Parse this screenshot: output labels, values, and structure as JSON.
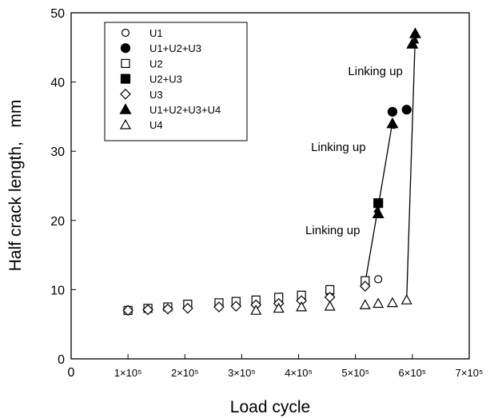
{
  "chart_data": {
    "type": "scatter",
    "xlabel": "Load cycle",
    "ylabel": "Half crack length,   mm",
    "xlim": [
      0,
      700000
    ],
    "ylim": [
      0,
      50
    ],
    "x_ticks": [
      {
        "value": 0,
        "label": "0"
      },
      {
        "value": 100000,
        "label": "1×10⁵"
      },
      {
        "value": 200000,
        "label": "2×10⁵"
      },
      {
        "value": 300000,
        "label": "3×10⁵"
      },
      {
        "value": 400000,
        "label": "4×10⁵"
      },
      {
        "value": 500000,
        "label": "5×10⁵"
      },
      {
        "value": 600000,
        "label": "6×10⁵"
      },
      {
        "value": 700000,
        "label": "7×10⁵"
      }
    ],
    "y_ticks": [
      {
        "value": 0,
        "label": "0"
      },
      {
        "value": 10,
        "label": "10"
      },
      {
        "value": 20,
        "label": "20"
      },
      {
        "value": 30,
        "label": "30"
      },
      {
        "value": 40,
        "label": "40"
      },
      {
        "value": 50,
        "label": "50"
      }
    ],
    "legend_position": "top-left",
    "series": [
      {
        "name": "U1",
        "marker": "circle-open",
        "points": [
          [
            100000,
            7.1
          ],
          [
            135000,
            7.2
          ],
          [
            170000,
            7.3
          ],
          [
            205000,
            7.6
          ],
          [
            260000,
            7.8
          ],
          [
            290000,
            7.9
          ],
          [
            325000,
            8.0
          ],
          [
            365000,
            8.4
          ],
          [
            405000,
            8.6
          ],
          [
            455000,
            9.3
          ],
          [
            517000,
            10.8
          ],
          [
            540000,
            11.5
          ]
        ]
      },
      {
        "name": "U1+U2+U3",
        "marker": "circle-filled",
        "points": [
          [
            565000,
            35.7
          ],
          [
            590000,
            36.0
          ]
        ]
      },
      {
        "name": "U2",
        "marker": "square-open",
        "points": [
          [
            100000,
            7.0
          ],
          [
            135000,
            7.3
          ],
          [
            170000,
            7.5
          ],
          [
            205000,
            7.9
          ],
          [
            260000,
            8.1
          ],
          [
            290000,
            8.3
          ],
          [
            325000,
            8.5
          ],
          [
            365000,
            8.9
          ],
          [
            405000,
            9.2
          ],
          [
            455000,
            10.0
          ],
          [
            517000,
            11.3
          ]
        ]
      },
      {
        "name": "U2+U3",
        "marker": "square-filled",
        "points": [
          [
            540000,
            22.5
          ]
        ]
      },
      {
        "name": "U3",
        "marker": "diamond-open",
        "points": [
          [
            100000,
            7.0
          ],
          [
            135000,
            7.1
          ],
          [
            170000,
            7.2
          ],
          [
            205000,
            7.3
          ],
          [
            260000,
            7.5
          ],
          [
            290000,
            7.6
          ],
          [
            325000,
            7.8
          ],
          [
            365000,
            8.0
          ],
          [
            405000,
            8.4
          ],
          [
            455000,
            8.9
          ],
          [
            517000,
            10.5
          ]
        ]
      },
      {
        "name": "U1+U2+U3+U4",
        "marker": "triangle-filled",
        "points": [
          [
            540000,
            21.0
          ],
          [
            565000,
            34.0
          ],
          [
            600000,
            45.5
          ],
          [
            605000,
            47.0
          ]
        ]
      },
      {
        "name": "U4",
        "marker": "triangle-open",
        "points": [
          [
            325000,
            7.0
          ],
          [
            365000,
            7.3
          ],
          [
            405000,
            7.5
          ],
          [
            455000,
            7.6
          ],
          [
            517000,
            7.8
          ],
          [
            540000,
            8.0
          ],
          [
            565000,
            8.1
          ],
          [
            590000,
            8.5
          ]
        ]
      }
    ],
    "arrows": [
      {
        "from": [
          517000,
          11.0
        ],
        "to": [
          540000,
          22.0
        ]
      },
      {
        "from": [
          540000,
          22.0
        ],
        "to": [
          565000,
          34.2
        ]
      },
      {
        "from": [
          590000,
          8.6
        ],
        "to": [
          605000,
          46.5
        ]
      }
    ],
    "annotations": [
      {
        "text": "Linking up",
        "x": 460000,
        "y": 18.0
      },
      {
        "text": "Linking up",
        "x": 470000,
        "y": 30.0
      },
      {
        "text": "Linking up",
        "x": 535000,
        "y": 41.0
      }
    ]
  }
}
